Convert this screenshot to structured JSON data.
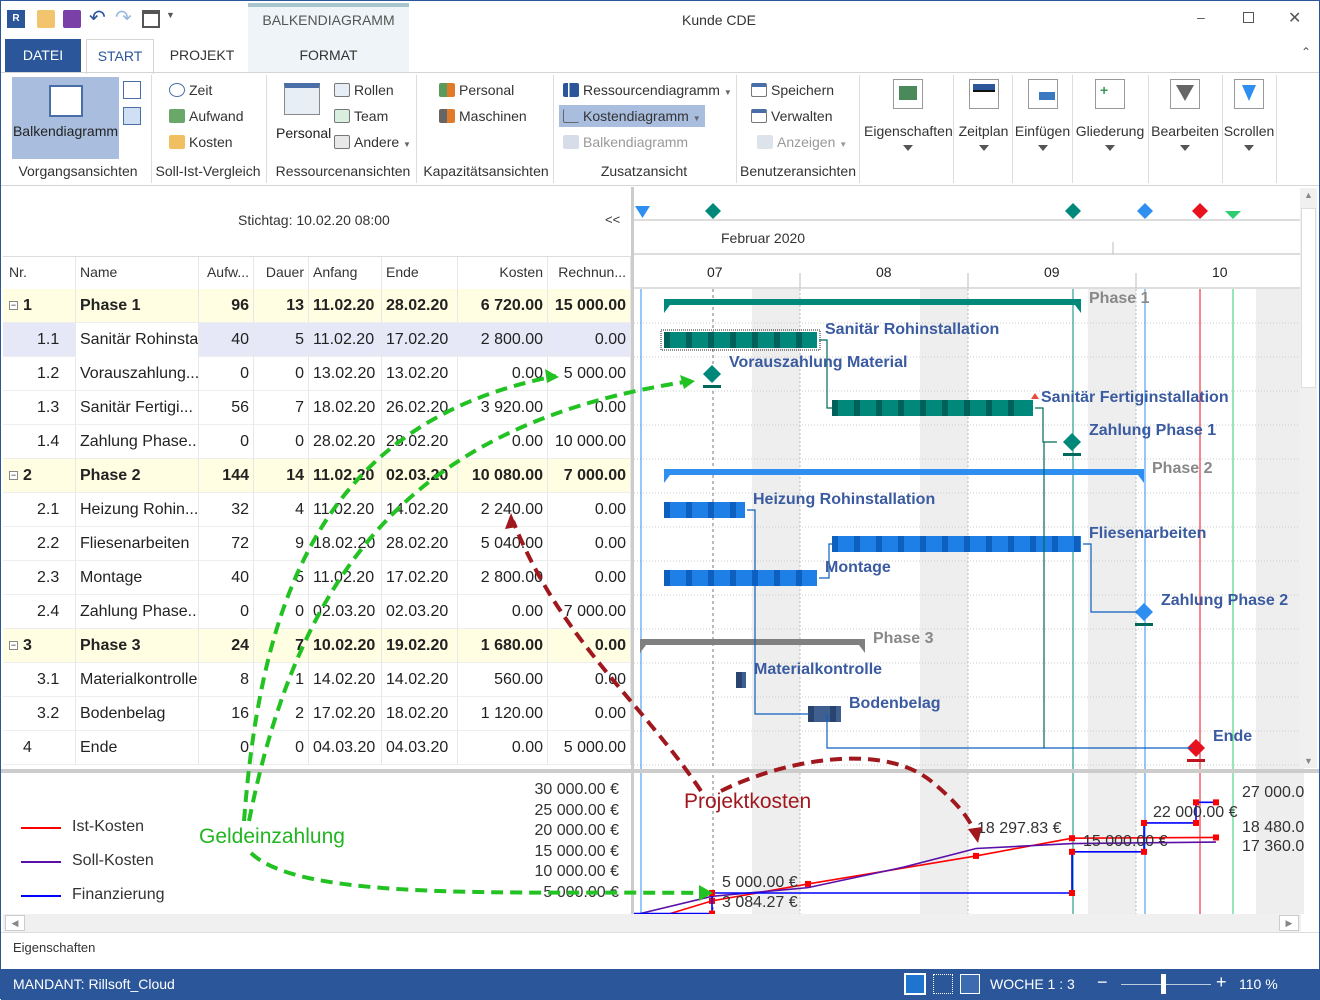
{
  "window": {
    "title": "Kunde CDE",
    "context_tab_group": "BALKENDIAGRAMM"
  },
  "tabs": [
    {
      "label": "DATEI"
    },
    {
      "label": "START"
    },
    {
      "label": "PROJEKT"
    },
    {
      "label": "FORMAT"
    }
  ],
  "ribbon": {
    "vorgang": {
      "big": "Balkendiagramm",
      "label": "Vorgangsansichten"
    },
    "sollist": {
      "items": [
        "Zeit",
        "Aufwand",
        "Kosten"
      ],
      "label": "Soll-Ist-Vergleich"
    },
    "ressourcen": {
      "big": "Personal",
      "items": [
        "Rollen",
        "Team",
        "Andere"
      ],
      "label": "Ressourcenansichten"
    },
    "kapazitaet": {
      "items": [
        "Personal",
        "Maschinen"
      ],
      "label": "Kapazitätsansichten"
    },
    "zusatz": {
      "items": [
        "Ressourcendiagramm",
        "Kostendiagramm",
        "Balkendiagramm"
      ],
      "label": "Zusatzansicht"
    },
    "benutzer": {
      "items": [
        "Speichern",
        "Verwalten",
        "Anzeigen"
      ],
      "label": "Benutzeransichten"
    },
    "big_buttons": [
      "Eigenschaften",
      "Zeitplan",
      "Einfügen",
      "Gliederung",
      "Bearbeiten",
      "Scrollen"
    ]
  },
  "stichtag": "Stichtag: 10.02.20 08:00",
  "collapse_label": "<<",
  "timescale": {
    "month": "Februar 2020",
    "weeks": [
      "07",
      "08",
      "09",
      "10"
    ]
  },
  "table": {
    "columns": [
      "Nr.",
      "Name",
      "Aufw...",
      "Dauer",
      "Anfang",
      "Ende",
      "Kosten",
      "Rechnun..."
    ],
    "rows": [
      {
        "nr": "1",
        "name": "Phase 1",
        "aufw": "96",
        "dauer": "13",
        "anfang": "11.02.20",
        "ende": "28.02.20",
        "kosten": "6 720.00",
        "rechnung": "15 000.00",
        "summary": true,
        "gantt_label": "Phase 1",
        "color": "#00897b"
      },
      {
        "nr": "1.1",
        "name": "Sanitär Rohinsta",
        "aufw": "40",
        "dauer": "5",
        "anfang": "11.02.20",
        "ende": "17.02.20",
        "kosten": "2 800.00",
        "rechnung": "0.00",
        "selected": true,
        "gantt_label": "Sanitär Rohinstallation",
        "color": "#00897b"
      },
      {
        "nr": "1.2",
        "name": "Vorauszahlung...",
        "aufw": "0",
        "dauer": "0",
        "anfang": "13.02.20",
        "ende": "13.02.20",
        "kosten": "0.00",
        "rechnung": "5 000.00",
        "milestone": true,
        "gantt_label": "Vorauszahlung Material",
        "color": "#00897b"
      },
      {
        "nr": "1.3",
        "name": "Sanitär Fertigi...",
        "aufw": "56",
        "dauer": "7",
        "anfang": "18.02.20",
        "ende": "26.02.20",
        "kosten": "3 920.00",
        "rechnung": "0.00",
        "gantt_label": "Sanitär Fertiginstallation",
        "color": "#00897b"
      },
      {
        "nr": "1.4",
        "name": "Zahlung Phase...",
        "aufw": "0",
        "dauer": "0",
        "anfang": "28.02.20",
        "ende": "28.02.20",
        "kosten": "0.00",
        "rechnung": "10 000.00",
        "milestone": true,
        "gantt_label": "Zahlung Phase 1",
        "color": "#00897b"
      },
      {
        "nr": "2",
        "name": "Phase 2",
        "aufw": "144",
        "dauer": "14",
        "anfang": "11.02.20",
        "ende": "02.03.20",
        "kosten": "10 080.00",
        "rechnung": "7 000.00",
        "summary": true,
        "gantt_label": "Phase 2",
        "color": "#2e8ff0"
      },
      {
        "nr": "2.1",
        "name": "Heizung Rohin...",
        "aufw": "32",
        "dauer": "4",
        "anfang": "11.02.20",
        "ende": "14.02.20",
        "kosten": "2 240.00",
        "rechnung": "0.00",
        "gantt_label": "Heizung Rohinstallation",
        "color": "#1e7fe6"
      },
      {
        "nr": "2.2",
        "name": "Fliesenarbeiten",
        "aufw": "72",
        "dauer": "9",
        "anfang": "18.02.20",
        "ende": "28.02.20",
        "kosten": "5 040.00",
        "rechnung": "0.00",
        "gantt_label": "Fliesenarbeiten",
        "color": "#1e7fe6"
      },
      {
        "nr": "2.3",
        "name": "Montage",
        "aufw": "40",
        "dauer": "5",
        "anfang": "11.02.20",
        "ende": "17.02.20",
        "kosten": "2 800.00",
        "rechnung": "0.00",
        "gantt_label": "Montage",
        "color": "#1e7fe6"
      },
      {
        "nr": "2.4",
        "name": "Zahlung Phase...",
        "aufw": "0",
        "dauer": "0",
        "anfang": "02.03.20",
        "ende": "02.03.20",
        "kosten": "0.00",
        "rechnung": "7 000.00",
        "milestone": true,
        "gantt_label": "Zahlung Phase 2",
        "color": "#2e8ff0"
      },
      {
        "nr": "3",
        "name": "Phase 3",
        "aufw": "24",
        "dauer": "7",
        "anfang": "10.02.20",
        "ende": "19.02.20",
        "kosten": "1 680.00",
        "rechnung": "0.00",
        "summary": true,
        "gantt_label": "Phase 3",
        "color": "#808080"
      },
      {
        "nr": "3.1",
        "name": "Materialkontrolle",
        "aufw": "8",
        "dauer": "1",
        "anfang": "14.02.20",
        "ende": "14.02.20",
        "kosten": "560.00",
        "rechnung": "0.00",
        "gantt_label": "Materialkontrolle",
        "color": "#3f5f90"
      },
      {
        "nr": "3.2",
        "name": "Bodenbelag",
        "aufw": "16",
        "dauer": "2",
        "anfang": "17.02.20",
        "ende": "18.02.20",
        "kosten": "1 120.00",
        "rechnung": "0.00",
        "gantt_label": "Bodenbelag",
        "color": "#3f5f90"
      },
      {
        "nr": "4",
        "name": "Ende",
        "aufw": "0",
        "dauer": "0",
        "anfang": "04.03.20",
        "ende": "04.03.20",
        "kosten": "0.00",
        "rechnung": "5 000.00",
        "milestone": true,
        "gantt_label": "Ende",
        "color": "#e8121e"
      }
    ]
  },
  "cost_chart": {
    "y_ticks": [
      "30 000.00 €",
      "25 000.00 €",
      "20 000.00 €",
      "15 000.00 €",
      "10 000.00 €",
      "5 000.00 €"
    ],
    "y_range": [
      0,
      30000
    ],
    "series": [
      {
        "name": "Ist-Kosten",
        "color": "#ff0000",
        "points": [
          [
            "11.02.20 14:00",
            0
          ],
          [
            "13.02.20 08:00",
            3084.27
          ],
          [
            "17.02.20 08:00",
            7200
          ],
          [
            "24.02.20 08:00",
            14000
          ],
          [
            "28.02.20 08:00",
            18297.83
          ],
          [
            "05.03.20 08:00",
            18480
          ]
        ]
      },
      {
        "name": "Soll-Kosten",
        "color": "#5a10a8",
        "points": [
          [
            "10.02.20 08:00",
            0
          ],
          [
            "13.02.20 08:00",
            4200
          ],
          [
            "17.02.20 08:00",
            6300
          ],
          [
            "21.02.20 08:00",
            11300
          ],
          [
            "24.02.20 08:00",
            15800
          ],
          [
            "28.02.20 08:00",
            17000
          ],
          [
            "05.03.20 08:00",
            17360
          ]
        ]
      },
      {
        "name": "Finanzierung",
        "color": "#0000ff",
        "points": [
          [
            "10.02.20 00:00",
            0
          ],
          [
            "13.02.20 08:00",
            0
          ],
          [
            "13.02.20 08:00",
            5000
          ],
          [
            "28.02.20 08:00",
            5000
          ],
          [
            "28.02.20 08:00",
            15000
          ],
          [
            "02.03.20 08:00",
            15000
          ],
          [
            "02.03.20 08:00",
            22000
          ],
          [
            "04.03.20 12:00",
            22000
          ],
          [
            "04.03.20 12:00",
            27000
          ],
          [
            "05.03.20 08:00",
            27000
          ]
        ]
      }
    ],
    "value_labels": [
      "5 000.00 €",
      "3 084.27 €",
      "18 297.83 €",
      "15 000.00 €",
      "22 000.00 €",
      "27 000.0",
      "18 480.0",
      "17 360.0"
    ]
  },
  "annotations": {
    "green": "Geldeinzahlung",
    "red": "Projektkosten"
  },
  "properties_panel": "Eigenschaften",
  "status": {
    "mandant": "MANDANT: Rillsoft_Cloud",
    "scale": "WOCHE 1 : 3",
    "zoom": "110 %",
    "zoom_percent": 110
  }
}
